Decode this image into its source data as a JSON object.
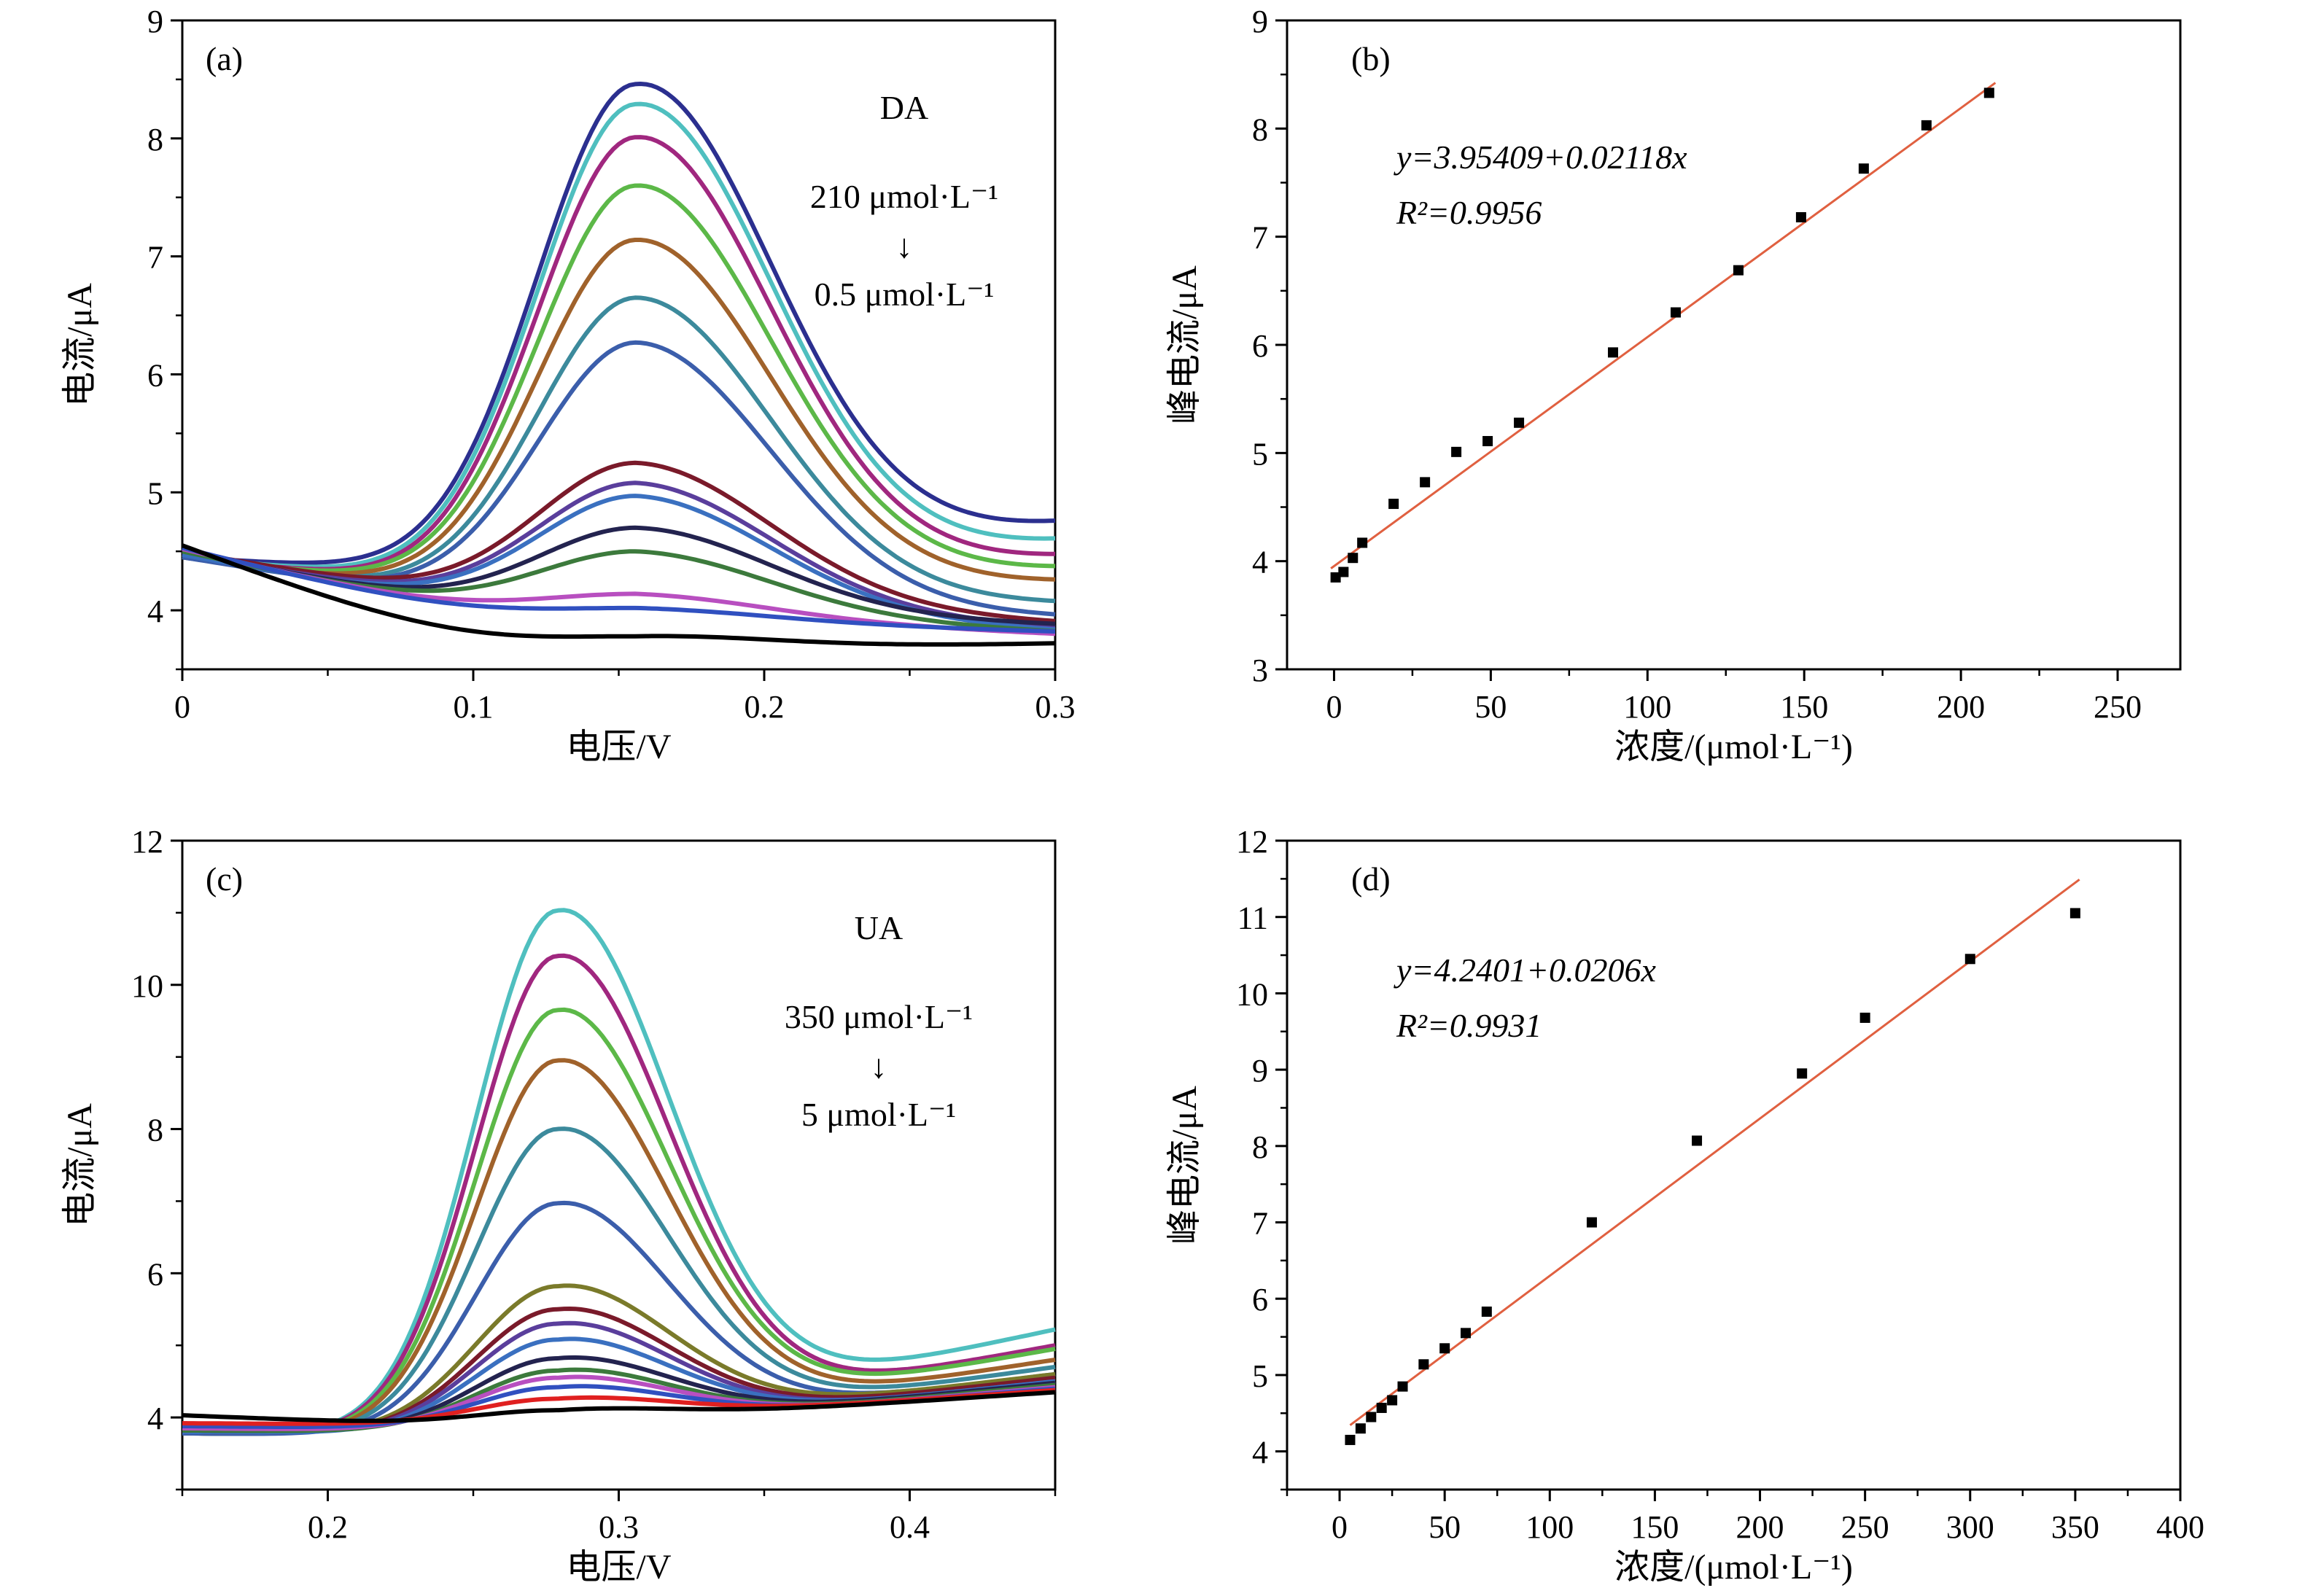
{
  "chart_data": [
    {
      "id": "a",
      "type": "line",
      "panel_label": "(a)",
      "xlabel": "电压/V",
      "ylabel": "电流/μA",
      "xlim": [
        0,
        0.3
      ],
      "ylim": [
        3.5,
        9
      ],
      "xticks": [
        "0",
        "0.1",
        "0.2",
        "0.3"
      ],
      "yticks": [
        "4",
        "5",
        "6",
        "7",
        "8",
        "9"
      ],
      "analyte": "DA",
      "range_from": "210 μmol·L⁻¹",
      "arrow": "↓",
      "range_to": "0.5 μmol·L⁻¹",
      "peak_x": 0.156,
      "curve_width": 0.034,
      "series": [
        {
          "color": "#2b2f8f",
          "start": 4.45,
          "min": 4.3,
          "end": 4.73,
          "peak": 8.46
        },
        {
          "color": "#4fbfbf",
          "start": 4.45,
          "min": 4.22,
          "end": 4.58,
          "peak": 8.29
        },
        {
          "color": "#a0277f",
          "start": 4.45,
          "min": 4.18,
          "end": 4.45,
          "peak": 8.01
        },
        {
          "color": "#5cb848",
          "start": 4.45,
          "min": 4.16,
          "end": 4.35,
          "peak": 7.6
        },
        {
          "color": "#a0622b",
          "start": 4.45,
          "min": 4.12,
          "end": 4.24,
          "peak": 7.14
        },
        {
          "color": "#3c8a9c",
          "start": 4.45,
          "min": 4.08,
          "end": 4.06,
          "peak": 6.65
        },
        {
          "color": "#3b5eab",
          "start": 4.45,
          "min": 4.05,
          "end": 3.95,
          "peak": 6.27
        },
        {
          "color": "#7a1a2a",
          "start": 4.5,
          "min": 4.08,
          "end": 3.9,
          "peak": 5.25
        },
        {
          "color": "#5a3e9c",
          "start": 4.48,
          "min": 4.05,
          "end": 3.85,
          "peak": 5.08
        },
        {
          "color": "#3a70c0",
          "start": 4.47,
          "min": 4.03,
          "end": 3.83,
          "peak": 4.97
        },
        {
          "color": "#23234f",
          "start": 4.5,
          "min": 4.0,
          "end": 3.88,
          "peak": 4.7
        },
        {
          "color": "#3c7a3c",
          "start": 4.5,
          "min": 3.98,
          "end": 3.82,
          "peak": 4.5
        },
        {
          "color": "#b84fc0",
          "start": 4.52,
          "min": 3.95,
          "end": 3.8,
          "peak": 4.14
        },
        {
          "color": "#3050c0",
          "start": 4.53,
          "min": 3.92,
          "end": 3.82,
          "peak": 4.02
        },
        {
          "color": "#000000",
          "start": 4.55,
          "min": 3.65,
          "end": 3.72,
          "peak": 3.78
        }
      ]
    },
    {
      "id": "b",
      "type": "scatter",
      "panel_label": "(b)",
      "xlabel": "浓度/(μmol·L⁻¹)",
      "ylabel": "峰电流/μA",
      "xlim": [
        -15,
        270
      ],
      "ylim": [
        3,
        9
      ],
      "xticks": [
        "0",
        "50",
        "100",
        "150",
        "200",
        "250"
      ],
      "yticks": [
        "3",
        "4",
        "5",
        "6",
        "7",
        "8",
        "9"
      ],
      "equation": "y=3.95409+0.02118x",
      "r2": "R²=0.9956",
      "fit": {
        "intercept": 3.95409,
        "slope": 0.02118,
        "x_range": [
          -1,
          211
        ]
      },
      "points": [
        {
          "x": 0.5,
          "y": 3.85
        },
        {
          "x": 3,
          "y": 3.9
        },
        {
          "x": 6,
          "y": 4.03
        },
        {
          "x": 9,
          "y": 4.17
        },
        {
          "x": 19,
          "y": 4.53
        },
        {
          "x": 29,
          "y": 4.73
        },
        {
          "x": 39,
          "y": 5.01
        },
        {
          "x": 49,
          "y": 5.11
        },
        {
          "x": 59,
          "y": 5.28
        },
        {
          "x": 89,
          "y": 5.93
        },
        {
          "x": 109,
          "y": 6.3
        },
        {
          "x": 129,
          "y": 6.69
        },
        {
          "x": 149,
          "y": 7.18
        },
        {
          "x": 169,
          "y": 7.63
        },
        {
          "x": 189,
          "y": 8.03
        },
        {
          "x": 209,
          "y": 8.33
        }
      ]
    },
    {
      "id": "c",
      "type": "line",
      "panel_label": "(c)",
      "xlabel": "电压/V",
      "ylabel": "电流/μA",
      "xlim": [
        0.15,
        0.45
      ],
      "ylim": [
        3,
        12
      ],
      "xticks": [
        "0.2",
        "0.3",
        "0.4"
      ],
      "yticks": [
        "4",
        "6",
        "8",
        "10",
        "12"
      ],
      "analyte": "UA",
      "range_from": "350 μmol·L⁻¹",
      "arrow": "↓",
      "range_to": "5 μmol·L⁻¹",
      "peak_x": 0.279,
      "curve_width": 0.028,
      "series": [
        {
          "color": "#4fbfbf",
          "start": 3.78,
          "min": 3.75,
          "end": 5.22,
          "peak": 11.03
        },
        {
          "color": "#a0277f",
          "start": 3.78,
          "min": 3.75,
          "end": 5.0,
          "peak": 10.4
        },
        {
          "color": "#5cb848",
          "start": 3.78,
          "min": 3.75,
          "end": 4.95,
          "peak": 9.65
        },
        {
          "color": "#a0622b",
          "start": 3.78,
          "min": 3.75,
          "end": 4.8,
          "peak": 8.95
        },
        {
          "color": "#3c8a9c",
          "start": 3.78,
          "min": 3.75,
          "end": 4.7,
          "peak": 8.0
        },
        {
          "color": "#3b5eab",
          "start": 3.78,
          "min": 3.75,
          "end": 4.6,
          "peak": 6.97
        },
        {
          "color": "#7a7a2a",
          "start": 3.8,
          "min": 3.78,
          "end": 4.6,
          "peak": 5.82
        },
        {
          "color": "#7a1a2a",
          "start": 3.8,
          "min": 3.78,
          "end": 4.55,
          "peak": 5.5
        },
        {
          "color": "#5a3e9c",
          "start": 3.8,
          "min": 3.78,
          "end": 4.5,
          "peak": 5.3
        },
        {
          "color": "#3a70c0",
          "start": 3.8,
          "min": 3.78,
          "end": 4.5,
          "peak": 5.08
        },
        {
          "color": "#23234f",
          "start": 3.82,
          "min": 3.8,
          "end": 4.48,
          "peak": 4.82
        },
        {
          "color": "#3c7a3c",
          "start": 3.82,
          "min": 3.8,
          "end": 4.45,
          "peak": 4.65
        },
        {
          "color": "#b84fc0",
          "start": 3.85,
          "min": 3.82,
          "end": 4.42,
          "peak": 4.55
        },
        {
          "color": "#3050c0",
          "start": 3.88,
          "min": 3.85,
          "end": 4.4,
          "peak": 4.42
        },
        {
          "color": "#e02020",
          "start": 3.92,
          "min": 3.9,
          "end": 4.38,
          "peak": 4.26
        },
        {
          "color": "#000000",
          "start": 4.03,
          "min": 3.9,
          "end": 4.35,
          "peak": 4.1
        }
      ]
    },
    {
      "id": "d",
      "type": "scatter",
      "panel_label": "(d)",
      "xlabel": "浓度/(μmol·L⁻¹)",
      "ylabel": "峰电流/μA",
      "xlim": [
        -25,
        400
      ],
      "ylim": [
        3.5,
        12
      ],
      "xticks": [
        "0",
        "50",
        "100",
        "150",
        "200",
        "250",
        "300",
        "350",
        "400"
      ],
      "yticks": [
        "4",
        "5",
        "6",
        "7",
        "8",
        "9",
        "10",
        "11",
        "12"
      ],
      "equation": "y=4.2401+0.0206x",
      "r2": "R²=0.9931",
      "fit": {
        "intercept": 4.2401,
        "slope": 0.0206,
        "x_range": [
          5,
          352
        ]
      },
      "points": [
        {
          "x": 5,
          "y": 4.15
        },
        {
          "x": 10,
          "y": 4.3
        },
        {
          "x": 15,
          "y": 4.45
        },
        {
          "x": 20,
          "y": 4.57
        },
        {
          "x": 25,
          "y": 4.67
        },
        {
          "x": 30,
          "y": 4.85
        },
        {
          "x": 40,
          "y": 5.14
        },
        {
          "x": 50,
          "y": 5.35
        },
        {
          "x": 60,
          "y": 5.55
        },
        {
          "x": 70,
          "y": 5.83
        },
        {
          "x": 120,
          "y": 7.0
        },
        {
          "x": 170,
          "y": 8.07
        },
        {
          "x": 220,
          "y": 8.95
        },
        {
          "x": 250,
          "y": 9.68
        },
        {
          "x": 300,
          "y": 10.45
        },
        {
          "x": 350,
          "y": 11.05
        }
      ]
    }
  ],
  "colors": {
    "axis": "#000000",
    "fit_line": "#e06040",
    "marker": "#000000"
  }
}
